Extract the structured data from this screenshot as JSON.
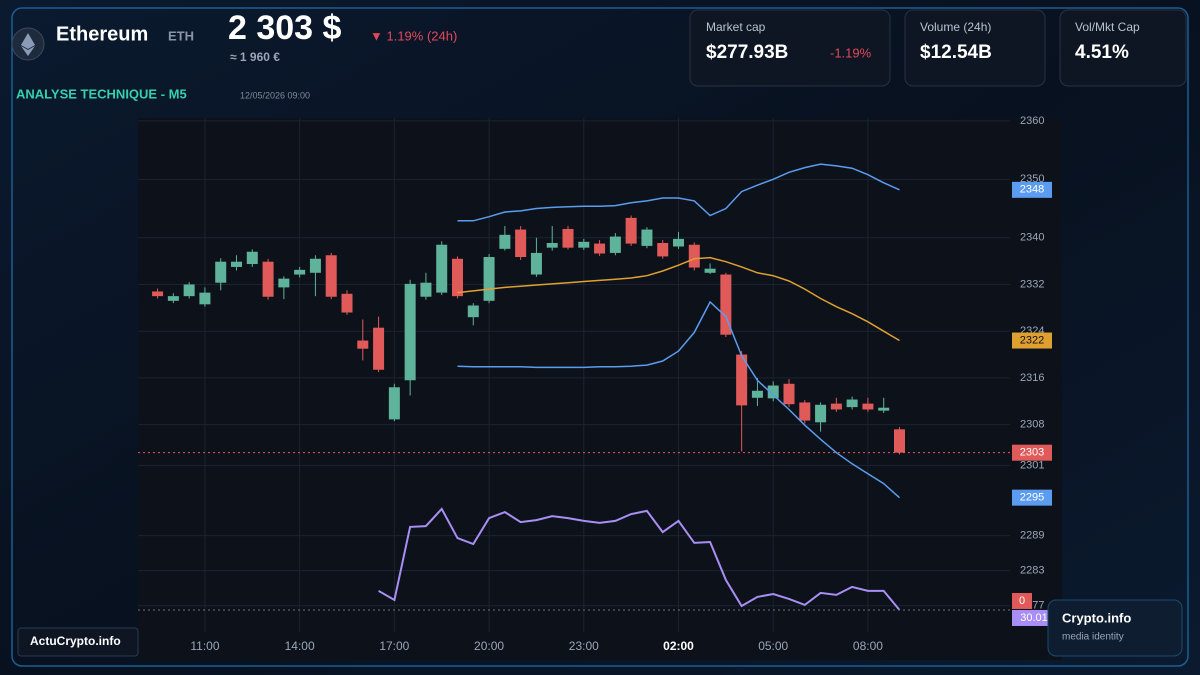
{
  "header": {
    "name": "Ethereum",
    "symbol": "ETH",
    "price": "2 303 $",
    "change": "▼ 1.19% (24h)",
    "price_eur": "≈ 1 960 €",
    "section": "ANALYSE TECHNIQUE - M5",
    "datetime": "12/05/2026 09:00"
  },
  "cards": [
    {
      "label": "Market cap",
      "value": "$277.93B",
      "change": "-1.19%"
    },
    {
      "label": "Volume (24h)",
      "value": "$12.54B"
    },
    {
      "label": "Vol/Mkt Cap",
      "value": "4.51%"
    }
  ],
  "footer": {
    "brand": "ActuCrypto.info",
    "watermark": "Crypto.info",
    "tagline": "media identity"
  },
  "chart_data": {
    "type": "candlestick",
    "x": [
      9.5,
      10,
      10.5,
      11,
      11.5,
      12,
      12.5,
      13,
      13.5,
      14,
      14.5,
      15,
      15.5,
      16,
      16.5,
      17,
      17.5,
      18,
      18.5,
      19,
      19.5,
      20,
      20.5,
      21,
      21.5,
      22,
      22.5,
      23,
      23.5,
      24,
      24.5,
      25,
      25.5,
      26,
      26.5,
      27,
      27.5,
      28,
      28.5,
      29,
      29.5,
      30,
      30.5,
      31,
      31.5,
      32,
      32.5,
      33
    ],
    "xlim": [
      8.88,
      36.5
    ],
    "xticks": [
      {
        "value": 11,
        "label": "11:00"
      },
      {
        "value": 14,
        "label": "14:00"
      },
      {
        "value": 17,
        "label": "17:00"
      },
      {
        "value": 20,
        "label": "20:00"
      },
      {
        "value": 23,
        "label": "23:00"
      },
      {
        "value": 26,
        "label": "02:00"
      },
      {
        "value": 29,
        "label": "05:00"
      },
      {
        "value": 32,
        "label": "08:00"
      }
    ],
    "ylim": [
      2272.5,
      2360.5
    ],
    "yticks": [
      2360,
      2350,
      2340,
      2332,
      2324,
      2316,
      2308,
      2301,
      2289,
      2283,
      2277
    ],
    "y2lim": [
      22.3,
      202.3
    ],
    "grid": true,
    "candles": {
      "up_color": "#5fb39a",
      "down_color": "#e05a5a",
      "last_label": "2303",
      "open": [
        2330.8,
        2329.2,
        2330.0,
        2328.6,
        2332.3,
        2335.0,
        2335.5,
        2335.9,
        2331.5,
        2333.7,
        2334.0,
        2337.0,
        2330.4,
        2322.4,
        2324.6,
        2308.9,
        2315.6,
        2329.9,
        2330.6,
        2336.4,
        2326.4,
        2329.2,
        2338.1,
        2341.4,
        2333.7,
        2338.3,
        2341.5,
        2338.3,
        2339.0,
        2337.4,
        2343.4,
        2338.6,
        2339.1,
        2338.5,
        2338.8,
        2334.0,
        2333.7,
        2320.0,
        2312.6,
        2312.5,
        2315.0,
        2311.8,
        2308.4,
        2311.6,
        2311.0,
        2311.6,
        2310.4,
        2307.2
      ],
      "high": [
        2331.3,
        2330.5,
        2332.4,
        2331.5,
        2336.5,
        2337.0,
        2338.0,
        2336.4,
        2333.4,
        2335.0,
        2337.0,
        2337.4,
        2331.0,
        2326.0,
        2326.5,
        2315.0,
        2332.8,
        2334.0,
        2339.4,
        2336.8,
        2328.8,
        2337.2,
        2342.0,
        2342.0,
        2340.0,
        2342.0,
        2342.0,
        2339.8,
        2339.6,
        2340.8,
        2343.8,
        2341.8,
        2339.6,
        2341.0,
        2339.2,
        2335.6,
        2334.0,
        2320.6,
        2316.0,
        2315.4,
        2315.8,
        2312.2,
        2311.8,
        2312.6,
        2312.8,
        2312.6,
        2312.6,
        2307.6
      ],
      "low": [
        2329.6,
        2328.8,
        2329.6,
        2328.2,
        2331.0,
        2334.4,
        2335.0,
        2329.4,
        2329.5,
        2333.2,
        2330.0,
        2329.5,
        2326.8,
        2319.0,
        2317.0,
        2308.6,
        2313.0,
        2329.4,
        2330.2,
        2329.6,
        2325.0,
        2328.8,
        2337.8,
        2336.2,
        2333.3,
        2337.8,
        2338.0,
        2337.9,
        2336.9,
        2337.0,
        2338.6,
        2338.2,
        2336.4,
        2338.1,
        2334.4,
        2333.8,
        2323.0,
        2303.4,
        2311.2,
        2312.0,
        2311.0,
        2308.2,
        2306.8,
        2310.2,
        2310.6,
        2310.2,
        2310.0,
        2302.9
      ],
      "close": [
        2330.0,
        2330.0,
        2332.0,
        2330.6,
        2335.9,
        2335.9,
        2337.6,
        2329.9,
        2333.0,
        2334.5,
        2336.4,
        2329.9,
        2327.2,
        2321.0,
        2317.4,
        2314.4,
        2332.1,
        2332.3,
        2338.8,
        2330.0,
        2328.4,
        2336.7,
        2340.5,
        2336.7,
        2337.4,
        2339.1,
        2338.3,
        2339.3,
        2337.3,
        2340.2,
        2339.0,
        2341.4,
        2336.8,
        2339.8,
        2334.9,
        2334.7,
        2323.4,
        2311.3,
        2313.8,
        2314.7,
        2311.5,
        2308.7,
        2311.4,
        2310.6,
        2312.3,
        2310.6,
        2310.9,
        2303.2
      ]
    },
    "series": [
      {
        "color": "#5b9cf0",
        "last_label": "2348",
        "values": [
          null,
          null,
          null,
          null,
          null,
          null,
          null,
          null,
          null,
          null,
          null,
          null,
          null,
          null,
          null,
          null,
          null,
          null,
          null,
          2342.9,
          2342.9,
          2343.6,
          2344.4,
          2344.6,
          2345.0,
          2345.2,
          2345.3,
          2345.4,
          2345.4,
          2345.5,
          2346.0,
          2346.3,
          2346.8,
          2346.8,
          2346.3,
          2343.8,
          2345.0,
          2347.9,
          2349.0,
          2350.0,
          2351.2,
          2352.0,
          2352.6,
          2352.3,
          2351.9,
          2350.8,
          2349.4,
          2348.2
        ]
      },
      {
        "color": "#e0a030",
        "last_label": "2322",
        "values": [
          null,
          null,
          null,
          null,
          null,
          null,
          null,
          null,
          null,
          null,
          null,
          null,
          null,
          null,
          null,
          null,
          null,
          null,
          null,
          2330.6,
          2330.9,
          2331.2,
          2331.5,
          2331.7,
          2331.9,
          2332.1,
          2332.3,
          2332.5,
          2332.7,
          2332.9,
          2333.1,
          2333.5,
          2334.3,
          2335.3,
          2336.4,
          2336.6,
          2335.9,
          2335.0,
          2334.0,
          2333.5,
          2332.6,
          2331.2,
          2329.6,
          2328.2,
          2327.0,
          2325.6,
          2324.0,
          2322.4
        ]
      },
      {
        "color": "#5b9cf0",
        "last_label": "2295",
        "values": [
          null,
          null,
          null,
          null,
          null,
          null,
          null,
          null,
          null,
          null,
          null,
          null,
          null,
          null,
          null,
          null,
          null,
          null,
          null,
          2318.0,
          2317.9,
          2317.9,
          2317.9,
          2317.9,
          2317.8,
          2317.8,
          2317.8,
          2317.8,
          2317.9,
          2317.9,
          2318.0,
          2318.2,
          2318.9,
          2320.6,
          2323.8,
          2329.0,
          2326.5,
          2319.8,
          2315.6,
          2313.1,
          2310.6,
          2307.9,
          2305.5,
          2303.2,
          2301.3,
          2299.6,
          2297.9,
          2295.5
        ]
      },
      {
        "color": "#a98ef5",
        "axis": "y2",
        "last_label": "30.01",
        "values": [
          null,
          null,
          null,
          null,
          null,
          null,
          null,
          null,
          null,
          null,
          null,
          null,
          null,
          null,
          36.7,
          33.5,
          59.1,
          59.4,
          65.4,
          55.2,
          53.1,
          62.2,
          64.3,
          60.8,
          61.5,
          62.9,
          62.2,
          61.2,
          60.5,
          61.2,
          63.6,
          64.7,
          57.3,
          61.2,
          53.5,
          53.8,
          40.5,
          31.4,
          34.6,
          35.6,
          33.9,
          31.8,
          36.0,
          35.3,
          38.1,
          36.7,
          36.7,
          30.01
        ]
      }
    ],
    "badges": [
      {
        "label": "0",
        "color": "#e05a5a"
      }
    ]
  }
}
